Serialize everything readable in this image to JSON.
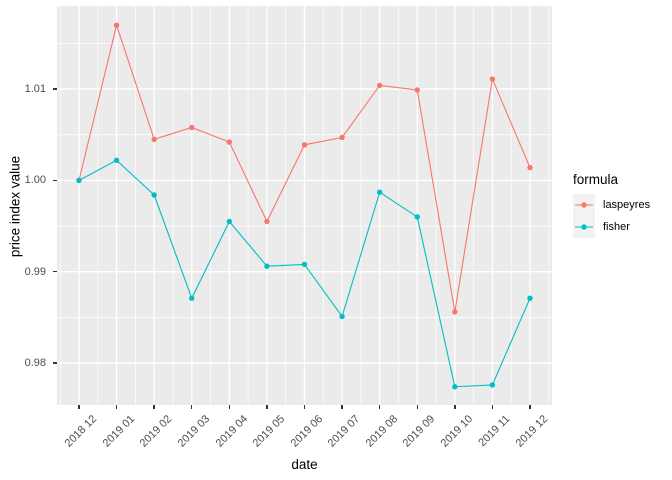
{
  "chart": {
    "x_axis_title": "date",
    "y_axis_title": "price index value"
  },
  "legend": {
    "title": "formula",
    "entries": [
      {
        "label": "laspeyres",
        "color": "#F8766D"
      },
      {
        "label": "fisher",
        "color": "#00BFC4"
      }
    ]
  },
  "chart_data": {
    "type": "line",
    "title": "",
    "xlabel": "date",
    "ylabel": "price index value",
    "categories": [
      "2018 12",
      "2019 01",
      "2019 02",
      "2019 03",
      "2019 04",
      "2019 05",
      "2019 06",
      "2019 07",
      "2019 08",
      "2019 09",
      "2019 10",
      "2019 11",
      "2019 12"
    ],
    "series": [
      {
        "name": "laspeyres",
        "color": "#F8766D",
        "values": [
          1.0,
          1.017,
          1.0045,
          1.0058,
          1.0042,
          0.9955,
          1.0039,
          1.0047,
          1.0104,
          1.0099,
          0.9856,
          1.0111,
          1.0014
        ]
      },
      {
        "name": "fisher",
        "color": "#00BFC4",
        "values": [
          1.0,
          1.0022,
          0.9984,
          0.9871,
          0.9955,
          0.9906,
          0.9908,
          0.9851,
          0.9987,
          0.996,
          0.9774,
          0.9776,
          0.9871
        ]
      }
    ],
    "ylim": [
      0.9754,
      1.0191
    ],
    "y_major_ticks": [
      1.01,
      1.0,
      0.99,
      0.98
    ],
    "y_tick_labels": [
      "1.01",
      "1.00",
      "0.99",
      "0.98"
    ],
    "y_minor_ticks": [
      1.015,
      1.005,
      0.995,
      0.985,
      0.975
    ],
    "grid": true,
    "legend_position": "right",
    "colors": {
      "panel_background": "#EBEBEB",
      "gridline": "#FFFFFF",
      "tick_text": "#4D4D4D",
      "tick_mark": "#333333",
      "legend_key_background": "#F2F2F2"
    }
  }
}
